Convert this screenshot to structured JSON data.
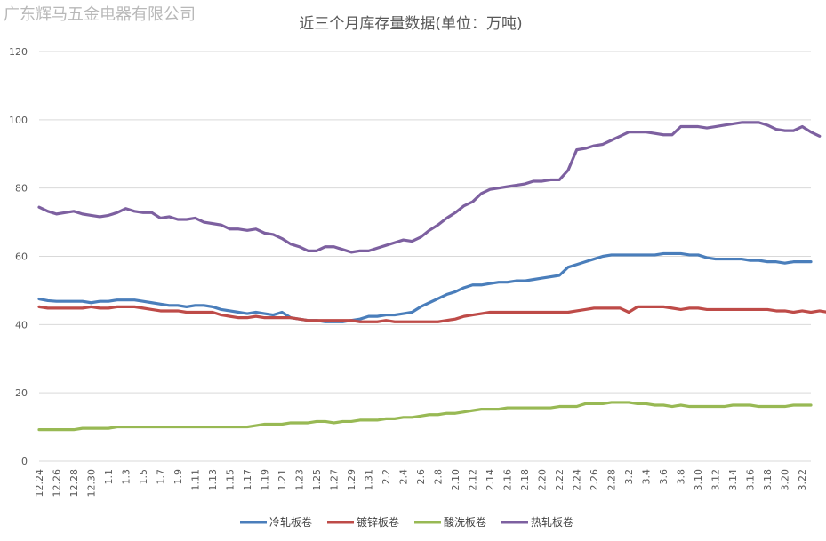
{
  "watermark": "广东辉马五金电器有限公司",
  "chart_data": {
    "type": "line",
    "title": "近三个月库存量数据(单位：万吨)",
    "xlabel": "",
    "ylabel": "",
    "ylim": [
      0,
      120
    ],
    "yticks": [
      0,
      20,
      40,
      60,
      80,
      100,
      120
    ],
    "grid": true,
    "legend_position": "bottom",
    "x_labels": [
      "12.24",
      "12.26",
      "12.28",
      "12.30",
      "1.1",
      "1.3",
      "1.5",
      "1.7",
      "1.9",
      "1.11",
      "1.13",
      "1.15",
      "1.17",
      "1.19",
      "1.21",
      "1.23",
      "1.25",
      "1.27",
      "1.29",
      "1.31",
      "2.2",
      "2.4",
      "2.6",
      "2.8",
      "2.10",
      "2.12",
      "2.14",
      "2.16",
      "2.18",
      "2.20",
      "2.22",
      "2.24",
      "2.26",
      "2.28",
      "3.2",
      "3.4",
      "3.6",
      "3.8",
      "3.10",
      "3.12",
      "3.14",
      "3.16",
      "3.18",
      "3.20",
      "3.22"
    ],
    "series": [
      {
        "name": "冷轧板卷",
        "color": "#4a7ebb",
        "values": [
          47.5,
          47,
          46.8,
          46.8,
          46.8,
          46.8,
          46.4,
          46.8,
          46.8,
          47.2,
          47.2,
          47.2,
          46.8,
          46.4,
          46,
          45.6,
          45.6,
          45.2,
          45.6,
          45.6,
          45.2,
          44.4,
          44,
          43.6,
          43.2,
          43.6,
          43.2,
          42.8,
          43.6,
          42,
          41.6,
          41.2,
          41.2,
          40.8,
          40.8,
          40.8,
          41.2,
          41.6,
          42.4,
          42.4,
          42.8,
          42.8,
          43.2,
          43.6,
          45.2,
          46.4,
          47.6,
          48.8,
          49.6,
          50.8,
          51.6,
          51.6,
          52,
          52.4,
          52.4,
          52.8,
          52.8,
          53.2,
          53.6,
          54,
          54.4,
          56.8,
          57.6,
          58.4,
          59.2,
          60,
          60.4,
          60.4,
          60.4,
          60.4,
          60.4,
          60.4,
          60.8,
          60.8,
          60.8,
          60.4,
          60.4,
          59.6,
          59.2,
          59.2,
          59.2,
          59.2,
          58.8,
          58.8,
          58.4,
          58.4,
          58,
          58.4,
          58.4,
          58.4
        ]
      },
      {
        "name": "镀锌板卷",
        "color": "#be4b48",
        "values": [
          45.2,
          44.8,
          44.8,
          44.8,
          44.8,
          44.8,
          45.2,
          44.8,
          44.8,
          45.2,
          45.2,
          45.2,
          44.8,
          44.4,
          44,
          44,
          44,
          43.6,
          43.6,
          43.6,
          43.6,
          42.8,
          42.4,
          42,
          42,
          42.4,
          42,
          42,
          42,
          42,
          41.6,
          41.2,
          41.2,
          41.2,
          41.2,
          41.2,
          41.2,
          40.8,
          40.8,
          40.8,
          41.2,
          40.8,
          40.8,
          40.8,
          40.8,
          40.8,
          40.8,
          41.2,
          41.6,
          42.4,
          42.8,
          43.2,
          43.6,
          43.6,
          43.6,
          43.6,
          43.6,
          43.6,
          43.6,
          43.6,
          43.6,
          43.6,
          44,
          44.4,
          44.8,
          44.8,
          44.8,
          44.8,
          43.6,
          45.2,
          45.2,
          45.2,
          45.2,
          44.8,
          44.4,
          44.8,
          44.8,
          44.4,
          44.4,
          44.4,
          44.4,
          44.4,
          44.4,
          44.4,
          44.4,
          44,
          44,
          43.6,
          44,
          43.6,
          44,
          43.6
        ]
      },
      {
        "name": "酸洗板卷",
        "color": "#98b954",
        "values": [
          9.2,
          9.2,
          9.2,
          9.2,
          9.2,
          9.6,
          9.6,
          9.6,
          9.6,
          10,
          10,
          10,
          10,
          10,
          10,
          10,
          10,
          10,
          10,
          10,
          10,
          10,
          10,
          10,
          10,
          10.4,
          10.8,
          10.8,
          10.8,
          11.2,
          11.2,
          11.2,
          11.6,
          11.6,
          11.2,
          11.6,
          11.6,
          12,
          12,
          12,
          12.4,
          12.4,
          12.8,
          12.8,
          13.2,
          13.6,
          13.6,
          14,
          14,
          14.4,
          14.8,
          15.2,
          15.2,
          15.2,
          15.6,
          15.6,
          15.6,
          15.6,
          15.6,
          15.6,
          16,
          16,
          16,
          16.8,
          16.8,
          16.8,
          17.2,
          17.2,
          17.2,
          16.8,
          16.8,
          16.4,
          16.4,
          16,
          16.4,
          16,
          16,
          16,
          16,
          16,
          16.4,
          16.4,
          16.4,
          16,
          16,
          16,
          16,
          16.4,
          16.4,
          16.4
        ]
      },
      {
        "name": "热轧板卷",
        "color": "#7d60a0",
        "values": [
          74.4,
          73.2,
          72.4,
          72.8,
          73.2,
          72.4,
          72,
          71.6,
          72,
          72.8,
          74,
          73.2,
          72.8,
          72.8,
          71.2,
          71.6,
          70.8,
          70.8,
          71.2,
          70,
          69.6,
          69.2,
          68,
          68,
          67.6,
          68,
          66.8,
          66.4,
          65.2,
          63.6,
          62.8,
          61.6,
          61.6,
          62.8,
          62.8,
          62,
          61.2,
          61.6,
          61.6,
          62.4,
          63.2,
          64,
          64.8,
          64.4,
          65.6,
          67.6,
          69.2,
          71.2,
          72.8,
          74.8,
          76,
          78.4,
          79.6,
          80,
          80.4,
          80.8,
          81.2,
          82,
          82,
          82.4,
          82.4,
          85.2,
          91.2,
          91.6,
          92.4,
          92.8,
          94,
          95.2,
          96.4,
          96.4,
          96.4,
          96,
          95.6,
          95.6,
          98,
          98,
          98,
          97.6,
          98,
          98.4,
          98.8,
          99.2,
          99.2,
          99.2,
          98.4,
          97.2,
          96.8,
          96.8,
          98,
          96.4,
          95.2
        ]
      }
    ]
  }
}
